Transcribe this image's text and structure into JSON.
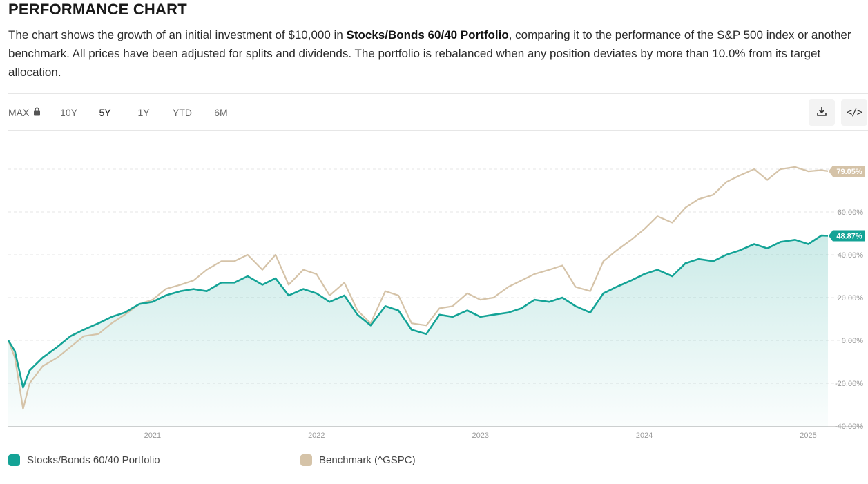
{
  "header": {
    "title": "PERFORMANCE CHART",
    "desc_part1": "The chart shows the growth of an initial investment of $10,000 in ",
    "desc_bold": "Stocks/Bonds 60/40 Portfolio",
    "desc_part2": ", comparing it to the performance of the S&P 500 index or another benchmark. All prices have been adjusted for splits and dividends. The portfolio is rebalanced when any position deviates by more than 10.0% from its target allocation."
  },
  "tabs": [
    {
      "label": "MAX",
      "locked": true
    },
    {
      "label": "10Y"
    },
    {
      "label": "5Y",
      "active": true
    },
    {
      "label": "1Y"
    },
    {
      "label": "YTD"
    },
    {
      "label": "6M"
    }
  ],
  "toolbar": {
    "download_icon": "download-icon",
    "embed_icon": "code-icon",
    "embed_label": "</>"
  },
  "colors": {
    "portfolio": "#14a396",
    "benchmark": "#d5c3a8",
    "accent": "#14a396"
  },
  "chart_data": {
    "type": "line",
    "title": "PERFORMANCE CHART",
    "ylabel": "",
    "xlabel": "",
    "ylim": [
      -40,
      90
    ],
    "yticks": [
      -40,
      -20,
      0,
      20,
      40,
      60
    ],
    "ytick_labels": [
      "-40.00%",
      "-20.00%",
      "0.00%",
      "20.00%",
      "40.00%",
      "60.00%"
    ],
    "x_range": [
      2020.12,
      2025.12
    ],
    "xticks": [
      2021,
      2022,
      2023,
      2024,
      2025
    ],
    "xtick_labels": [
      "2021",
      "2022",
      "2023",
      "2024",
      "2025"
    ],
    "grid": true,
    "legend_position": "bottom",
    "series": [
      {
        "name": "Stocks/Bonds 60/40 Portfolio",
        "color": "#14a396",
        "filled": true,
        "last_label": "48.87%",
        "x": [
          2020.12,
          2020.16,
          2020.21,
          2020.25,
          2020.33,
          2020.42,
          2020.5,
          2020.58,
          2020.67,
          2020.75,
          2020.83,
          2020.92,
          2021.0,
          2021.08,
          2021.17,
          2021.25,
          2021.33,
          2021.42,
          2021.5,
          2021.58,
          2021.67,
          2021.75,
          2021.83,
          2021.92,
          2022.0,
          2022.08,
          2022.17,
          2022.25,
          2022.33,
          2022.42,
          2022.5,
          2022.58,
          2022.67,
          2022.75,
          2022.83,
          2022.92,
          2023.0,
          2023.08,
          2023.17,
          2023.25,
          2023.33,
          2023.42,
          2023.5,
          2023.58,
          2023.67,
          2023.75,
          2023.83,
          2023.92,
          2024.0,
          2024.08,
          2024.17,
          2024.25,
          2024.33,
          2024.42,
          2024.5,
          2024.58,
          2024.67,
          2024.75,
          2024.83,
          2024.92,
          2025.0,
          2025.08,
          2025.12
        ],
        "values": [
          0,
          -5,
          -22,
          -14,
          -8,
          -3,
          2,
          5,
          8,
          11,
          13,
          17,
          18,
          21,
          23,
          24,
          23,
          27,
          27,
          30,
          26,
          29,
          21,
          24,
          22,
          18,
          21,
          12,
          7,
          16,
          14,
          5,
          3,
          12,
          11,
          14,
          11,
          12,
          13,
          15,
          19,
          18,
          20,
          16,
          13,
          22,
          25,
          28,
          31,
          33,
          30,
          36,
          38,
          37,
          40,
          42,
          45,
          43,
          46,
          47,
          45,
          49,
          48.87
        ]
      },
      {
        "name": "Benchmark (^GSPC)",
        "color": "#d5c3a8",
        "filled": false,
        "last_label": "79.05%",
        "x": [
          2020.12,
          2020.16,
          2020.21,
          2020.25,
          2020.33,
          2020.42,
          2020.5,
          2020.58,
          2020.67,
          2020.75,
          2020.83,
          2020.92,
          2021.0,
          2021.08,
          2021.17,
          2021.25,
          2021.33,
          2021.42,
          2021.5,
          2021.58,
          2021.67,
          2021.75,
          2021.83,
          2021.92,
          2022.0,
          2022.08,
          2022.17,
          2022.25,
          2022.33,
          2022.42,
          2022.5,
          2022.58,
          2022.67,
          2022.75,
          2022.83,
          2022.92,
          2023.0,
          2023.08,
          2023.17,
          2023.25,
          2023.33,
          2023.42,
          2023.5,
          2023.58,
          2023.67,
          2023.75,
          2023.83,
          2023.92,
          2024.0,
          2024.08,
          2024.17,
          2024.25,
          2024.33,
          2024.42,
          2024.5,
          2024.58,
          2024.67,
          2024.75,
          2024.83,
          2024.92,
          2025.0,
          2025.08,
          2025.12
        ],
        "values": [
          0,
          -8,
          -32,
          -20,
          -12,
          -8,
          -3,
          2,
          3,
          8,
          12,
          17,
          19,
          24,
          26,
          28,
          33,
          37,
          37,
          40,
          33,
          40,
          26,
          33,
          31,
          21,
          27,
          14,
          8,
          23,
          21,
          8,
          7,
          15,
          16,
          22,
          19,
          20,
          25,
          28,
          31,
          33,
          35,
          25,
          23,
          37,
          42,
          47,
          52,
          58,
          55,
          62,
          66,
          68,
          74,
          77,
          80,
          75,
          80,
          81,
          79,
          79.5,
          79.05
        ]
      }
    ]
  },
  "legend": [
    {
      "label": "Stocks/Bonds 60/40 Portfolio",
      "color": "#14a396"
    },
    {
      "label": "Benchmark (^GSPC)",
      "color": "#d5c3a8"
    }
  ]
}
